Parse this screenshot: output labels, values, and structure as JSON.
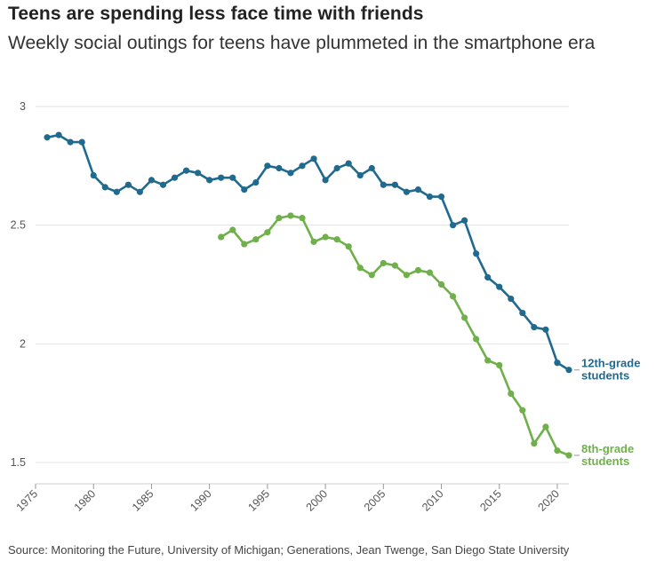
{
  "chart_data": {
    "type": "line",
    "title": "Teens are spending less face time with friends",
    "subtitle": "Weekly social outings for teens have plummeted in the smartphone era",
    "source": "Source: Monitoring the Future, University of Michigan; Generations, Jean Twenge, San Diego State University",
    "xlim": [
      1975,
      2021
    ],
    "ylim": [
      1.5,
      3
    ],
    "x_ticks": [
      1975,
      1980,
      1985,
      1990,
      1995,
      2000,
      2005,
      2010,
      2015,
      2020
    ],
    "y_ticks": [
      {
        "value": 1.5,
        "label": "1.5"
      },
      {
        "value": 2,
        "label": "2"
      },
      {
        "value": 2.5,
        "label": "2.5"
      },
      {
        "value": 3,
        "label": "3"
      }
    ],
    "grid": true,
    "series": [
      {
        "name": "12th-grade students",
        "label_lines": [
          "12th-grade",
          "students"
        ],
        "color": "#1f6a8e",
        "x": [
          1976,
          1977,
          1978,
          1979,
          1980,
          1981,
          1982,
          1983,
          1984,
          1985,
          1986,
          1987,
          1988,
          1989,
          1990,
          1991,
          1992,
          1993,
          1994,
          1995,
          1996,
          1997,
          1998,
          1999,
          2000,
          2001,
          2002,
          2003,
          2004,
          2005,
          2006,
          2007,
          2008,
          2009,
          2010,
          2011,
          2012,
          2013,
          2014,
          2015,
          2016,
          2017,
          2018,
          2019,
          2020,
          2021
        ],
        "values": [
          2.87,
          2.88,
          2.85,
          2.85,
          2.71,
          2.66,
          2.64,
          2.67,
          2.64,
          2.69,
          2.67,
          2.7,
          2.73,
          2.72,
          2.69,
          2.7,
          2.7,
          2.65,
          2.68,
          2.75,
          2.74,
          2.72,
          2.75,
          2.78,
          2.69,
          2.74,
          2.76,
          2.71,
          2.74,
          2.67,
          2.67,
          2.64,
          2.65,
          2.62,
          2.62,
          2.5,
          2.52,
          2.38,
          2.28,
          2.24,
          2.19,
          2.13,
          2.07,
          2.06,
          1.92,
          1.89
        ]
      },
      {
        "name": "8th-grade students",
        "label_lines": [
          "8th-grade",
          "students"
        ],
        "color": "#6fb04a",
        "x": [
          1991,
          1992,
          1993,
          1994,
          1995,
          1996,
          1997,
          1998,
          1999,
          2000,
          2001,
          2002,
          2003,
          2004,
          2005,
          2006,
          2007,
          2008,
          2009,
          2010,
          2011,
          2012,
          2013,
          2014,
          2015,
          2016,
          2017,
          2018,
          2019,
          2020,
          2021
        ],
        "values": [
          2.45,
          2.48,
          2.42,
          2.44,
          2.47,
          2.53,
          2.54,
          2.53,
          2.43,
          2.45,
          2.44,
          2.41,
          2.32,
          2.29,
          2.34,
          2.33,
          2.29,
          2.31,
          2.3,
          2.25,
          2.2,
          2.11,
          2.02,
          1.93,
          1.91,
          1.79,
          1.72,
          1.58,
          1.65,
          1.55,
          1.53
        ]
      }
    ]
  }
}
